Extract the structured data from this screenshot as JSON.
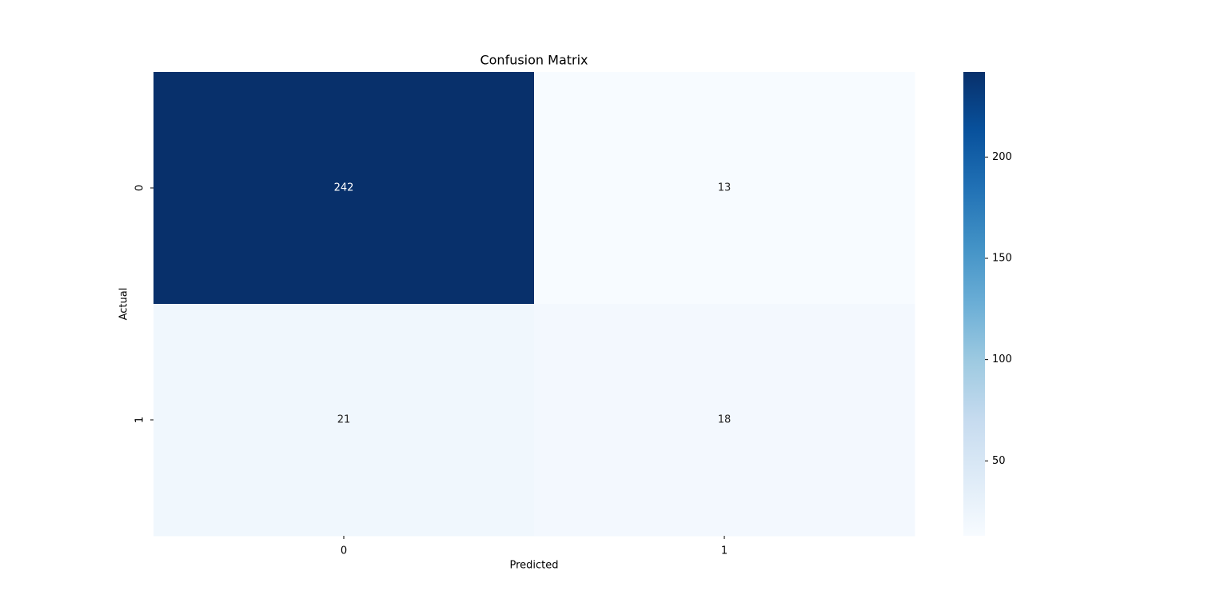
{
  "chart_data": {
    "type": "heatmap",
    "title": "Confusion Matrix",
    "x_label": "Predicted",
    "y_label": "Actual",
    "x_categories": [
      "0",
      "1"
    ],
    "y_categories": [
      "0",
      "1"
    ],
    "values": [
      [
        242,
        13
      ],
      [
        21,
        18
      ]
    ],
    "colormap": "Blues",
    "clim": [
      13,
      242
    ],
    "colorbar_ticks": [
      50,
      100,
      150,
      200
    ]
  }
}
